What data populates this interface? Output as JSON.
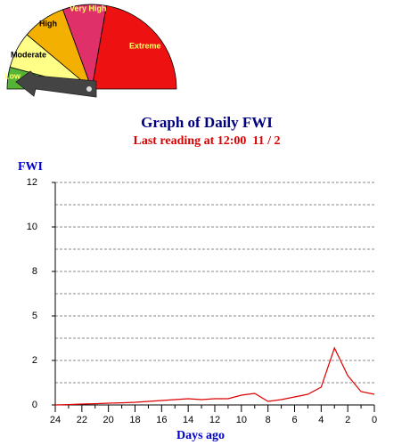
{
  "gauge": {
    "labels": [
      "Low",
      "Moderate",
      "High",
      "Very High",
      "Extreme"
    ]
  },
  "chart_data": {
    "type": "line",
    "title": "Graph of Daily FWI",
    "subtitle": "Last reading at 12:00  11 / 2",
    "y_label": "FWI",
    "x_label": "Days ago",
    "x": [
      24,
      23,
      22,
      21,
      20,
      19,
      18,
      17,
      16,
      15,
      14,
      13,
      12,
      11,
      10,
      9,
      8,
      7,
      6,
      5,
      4,
      3,
      2,
      1,
      0
    ],
    "series": [
      {
        "name": "FWI",
        "color": "#dd0000",
        "values": [
          0,
          0.02,
          0.05,
          0.07,
          0.1,
          0.12,
          0.15,
          0.2,
          0.25,
          0.3,
          0.35,
          0.3,
          0.35,
          0.35,
          0.55,
          0.65,
          0.2,
          0.3,
          0.45,
          0.6,
          1.0,
          3.2,
          1.65,
          0.75,
          0.6
        ]
      }
    ],
    "xlim": [
      24,
      0
    ],
    "xticks": [
      24,
      22,
      20,
      18,
      16,
      14,
      12,
      10,
      8,
      6,
      4,
      2,
      0
    ],
    "xminorticks": [
      23,
      21,
      19,
      17,
      15,
      13,
      11,
      9,
      7,
      5,
      3,
      1
    ],
    "ylim": [
      0,
      12.5
    ],
    "yticks": [
      0,
      {
        "value": 2.5,
        "label": "2"
      },
      5,
      {
        "value": 7.5,
        "label": "8"
      },
      10,
      {
        "value": 12.5,
        "label": "12"
      }
    ],
    "yminorticks": [
      1.25,
      3.75,
      6.25,
      8.75,
      11.25
    ],
    "grid": true
  }
}
